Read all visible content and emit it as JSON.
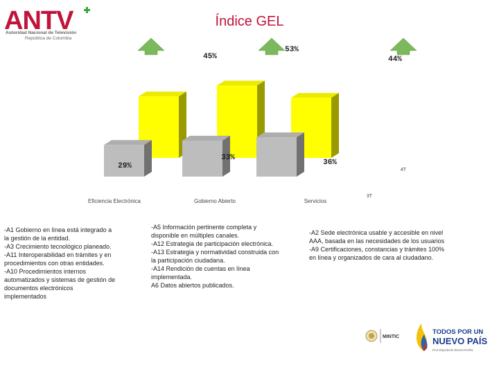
{
  "header": {
    "logo_text": "ANTV",
    "logo_subtitle_1": "Autoridad Nacional de Televisión",
    "logo_subtitle_2": "República de Colombia",
    "title": "Índice GEL"
  },
  "chart_data": {
    "type": "bar",
    "title": "Índice GEL",
    "categories": [
      "Eficiencia Electrónica",
      "Gobierno Abierto",
      "Servicios"
    ],
    "series": [
      {
        "name": "3T",
        "color": "#bdbdbd",
        "values": [
          29,
          33,
          36
        ],
        "labels": [
          "29%",
          "33%",
          "36%"
        ]
      },
      {
        "name": "4T",
        "color": "#ffff00",
        "values": [
          45,
          53,
          44
        ],
        "labels": [
          "45%",
          "53%",
          "44%"
        ]
      }
    ],
    "ylim": [
      0,
      60
    ],
    "trend": "up"
  },
  "descriptions": {
    "eficiencia": [
      "-A1 Gobierno en línea está integrado a",
      "la gestión de la entidad.",
      "-A3 Crecimiento tecnológico planeado.",
      "-A11 Interoperabilidad en trámites y en",
      "procedimientos con otras entidades.",
      "-A10 Procedimientos internos",
      "automatizados y sistemas de gestión de",
      "documentos electrónicos",
      "implementados"
    ],
    "gobierno": [
      "-A5 Información pertinente completa y",
      "disponible en múltiples canales.",
      "-A12 Estrategia de participación electrónica.",
      "-A13 Estrategia y normatividad construida con",
      "la participación ciudadana.",
      "-A14 Rendición de cuentas en línea",
      "implementada.",
      "A6 Datos abiertos publicados."
    ],
    "servicios": [
      "-A2 Sede electrónica usable y accesible en nivel",
      "AAA, basada en las necesidades de los usuarios",
      "-A9 Certificaciones, constancias y trámites 100%",
      "en línea y organizados de cara al ciudadano."
    ]
  },
  "footer": {
    "mintic": "MINTIC",
    "todos_1": "TODOS POR UN",
    "todos_2": "NUEVO PAÍS",
    "todos_3": "PAZ   EQUIDAD   EDUCACIÓN"
  }
}
